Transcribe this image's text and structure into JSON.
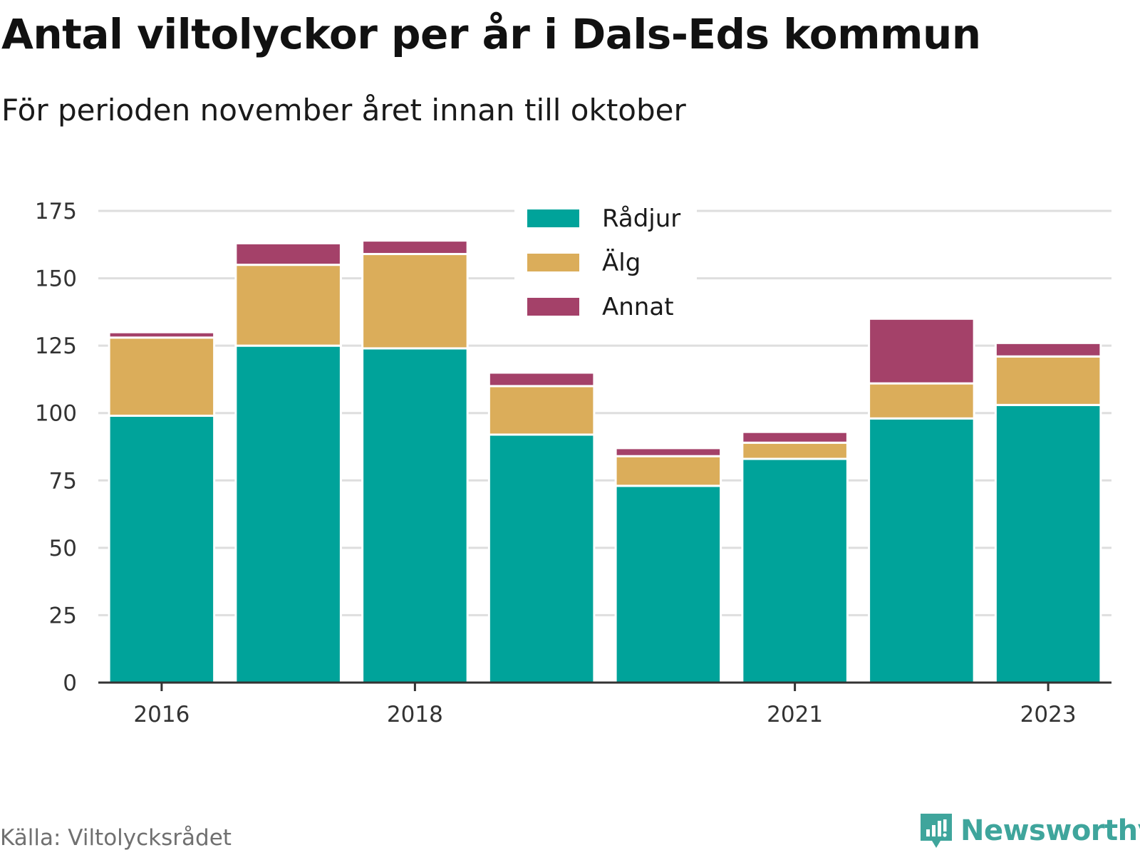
{
  "title": "Antal viltolyckor per år i Dals-Eds kommun",
  "subtitle": "För perioden november året innan till oktober",
  "source": "Källa: Viltolycksrådet",
  "brand": {
    "name": "Newsworthy",
    "icon": "newsworthy-logo-icon",
    "color": "#3fa59c"
  },
  "chart_data": {
    "type": "bar",
    "stacked": true,
    "x": [
      2016,
      2017,
      2018,
      2019,
      2020,
      2021,
      2022,
      2023
    ],
    "x_tick_labels": [
      "2016",
      "2018",
      "2021",
      "2023"
    ],
    "x_tick_values": [
      2016,
      2018,
      2021,
      2023
    ],
    "series": [
      {
        "name": "Rådjur",
        "color": "#00a39a",
        "values": [
          99,
          125,
          124,
          92,
          73,
          83,
          98,
          103
        ]
      },
      {
        "name": "Älg",
        "color": "#dbad5a",
        "values": [
          29,
          30,
          35,
          18,
          11,
          6,
          13,
          18
        ]
      },
      {
        "name": "Annat",
        "color": "#a44169",
        "values": [
          2,
          8,
          5,
          5,
          3,
          4,
          24,
          5
        ]
      }
    ],
    "ylim": [
      0,
      175
    ],
    "yticks": [
      0,
      25,
      50,
      75,
      100,
      125,
      150,
      175
    ],
    "grid": true,
    "legend_position": "top-center",
    "xlabel": "",
    "ylabel": ""
  }
}
